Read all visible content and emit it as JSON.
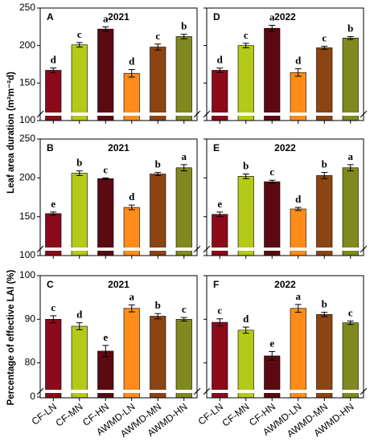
{
  "y_labels": [
    "Leaf area duration (m²m⁻²d)",
    "Percentage of effective LAI (%)"
  ],
  "chart_data": [
    {
      "type": "bar",
      "panel": "A",
      "title": "2021",
      "categories": [
        "CF-LN",
        "CF-MN",
        "CF-HN",
        "AWMD-LN",
        "AWMD-MN",
        "AWMD-HN"
      ],
      "colors": [
        "#8b0a1a",
        "#b5c91a",
        "#5c0a12",
        "#ff8c1a",
        "#8b4513",
        "#7f8a1e"
      ],
      "values": [
        167,
        201,
        222,
        163,
        198,
        212
      ],
      "errors": [
        3,
        3,
        3,
        5,
        4,
        3
      ],
      "letters": [
        "d",
        "c",
        "a",
        "d",
        "c",
        "b"
      ],
      "ylim": [
        100,
        250
      ],
      "yticks": [
        100,
        150,
        200,
        250
      ],
      "show_ytick_labels": true,
      "show_xtick_labels": false
    },
    {
      "type": "bar",
      "panel": "D",
      "title": "2022",
      "categories": [
        "CF-LN",
        "CF-MN",
        "CF-HN",
        "AWMD-LN",
        "AWMD-MN",
        "AWMD-HN"
      ],
      "colors": [
        "#8b0a1a",
        "#b5c91a",
        "#5c0a12",
        "#ff8c1a",
        "#8b4513",
        "#7f8a1e"
      ],
      "values": [
        167,
        200,
        223,
        164,
        197,
        210
      ],
      "errors": [
        3,
        3,
        4,
        5,
        2,
        2
      ],
      "letters": [
        "d",
        "c",
        "a",
        "d",
        "c",
        "b"
      ],
      "ylim": [
        100,
        250
      ],
      "yticks": [
        100,
        150,
        200,
        250
      ],
      "show_ytick_labels": false,
      "show_xtick_labels": false
    },
    {
      "type": "bar",
      "panel": "B",
      "title": "2021",
      "categories": [
        "CF-LN",
        "CF-MN",
        "CF-HN",
        "AWMD-LN",
        "AWMD-MN",
        "AWMD-HN"
      ],
      "colors": [
        "#8b0a1a",
        "#b5c91a",
        "#5c0a12",
        "#ff8c1a",
        "#8b4513",
        "#7f8a1e"
      ],
      "values": [
        154,
        206,
        199,
        162,
        205,
        213
      ],
      "errors": [
        2,
        3,
        1,
        3,
        2,
        4
      ],
      "letters": [
        "e",
        "b",
        "c",
        "d",
        "b",
        "a"
      ],
      "ylim": [
        100,
        250
      ],
      "yticks": [
        100,
        150,
        200,
        250
      ],
      "show_ytick_labels": true,
      "show_xtick_labels": false
    },
    {
      "type": "bar",
      "panel": "E",
      "title": "2022",
      "categories": [
        "CF-LN",
        "CF-MN",
        "CF-HN",
        "AWMD-LN",
        "AWMD-MN",
        "AWMD-HN"
      ],
      "colors": [
        "#8b0a1a",
        "#b5c91a",
        "#5c0a12",
        "#ff8c1a",
        "#8b4513",
        "#7f8a1e"
      ],
      "values": [
        153,
        202,
        195,
        160,
        203,
        213
      ],
      "errors": [
        3,
        3,
        2,
        2,
        4,
        4
      ],
      "letters": [
        "e",
        "b",
        "c",
        "d",
        "b",
        "a"
      ],
      "ylim": [
        100,
        250
      ],
      "yticks": [
        100,
        150,
        200,
        250
      ],
      "show_ytick_labels": false,
      "show_xtick_labels": false
    },
    {
      "type": "bar",
      "panel": "C",
      "title": "2021",
      "categories": [
        "CF-LN",
        "CF-MN",
        "CF-HN",
        "AWMD-LN",
        "AWMD-MN",
        "AWMD-HN"
      ],
      "colors": [
        "#8b0a1a",
        "#b5c91a",
        "#5c0a12",
        "#ff8c1a",
        "#8b4513",
        "#7f8a1e"
      ],
      "values": [
        90.0,
        88.4,
        82.7,
        92.5,
        90.7,
        90.0
      ],
      "errors": [
        0.8,
        0.8,
        1.3,
        0.8,
        0.6,
        0.4
      ],
      "letters": [
        "c",
        "d",
        "e",
        "a",
        "b",
        "c"
      ],
      "ylim": [
        72,
        100
      ],
      "yticks": [
        80,
        90,
        100
      ],
      "ybottom_label": "0",
      "show_ytick_labels": true,
      "show_xtick_labels": true
    },
    {
      "type": "bar",
      "panel": "F",
      "title": "2022",
      "categories": [
        "CF-LN",
        "CF-MN",
        "CF-HN",
        "AWMD-LN",
        "AWMD-MN",
        "AWMD-HN"
      ],
      "colors": [
        "#8b0a1a",
        "#b5c91a",
        "#5c0a12",
        "#ff8c1a",
        "#8b4513",
        "#7f8a1e"
      ],
      "values": [
        89.3,
        87.5,
        81.6,
        92.5,
        91.1,
        89.2
      ],
      "errors": [
        0.8,
        0.7,
        1.0,
        0.9,
        0.5,
        0.4
      ],
      "letters": [
        "c",
        "d",
        "e",
        "a",
        "b",
        "c"
      ],
      "ylim": [
        72,
        100
      ],
      "yticks": [
        80,
        90,
        100
      ],
      "show_ytick_labels": false,
      "show_xtick_labels": true
    }
  ]
}
